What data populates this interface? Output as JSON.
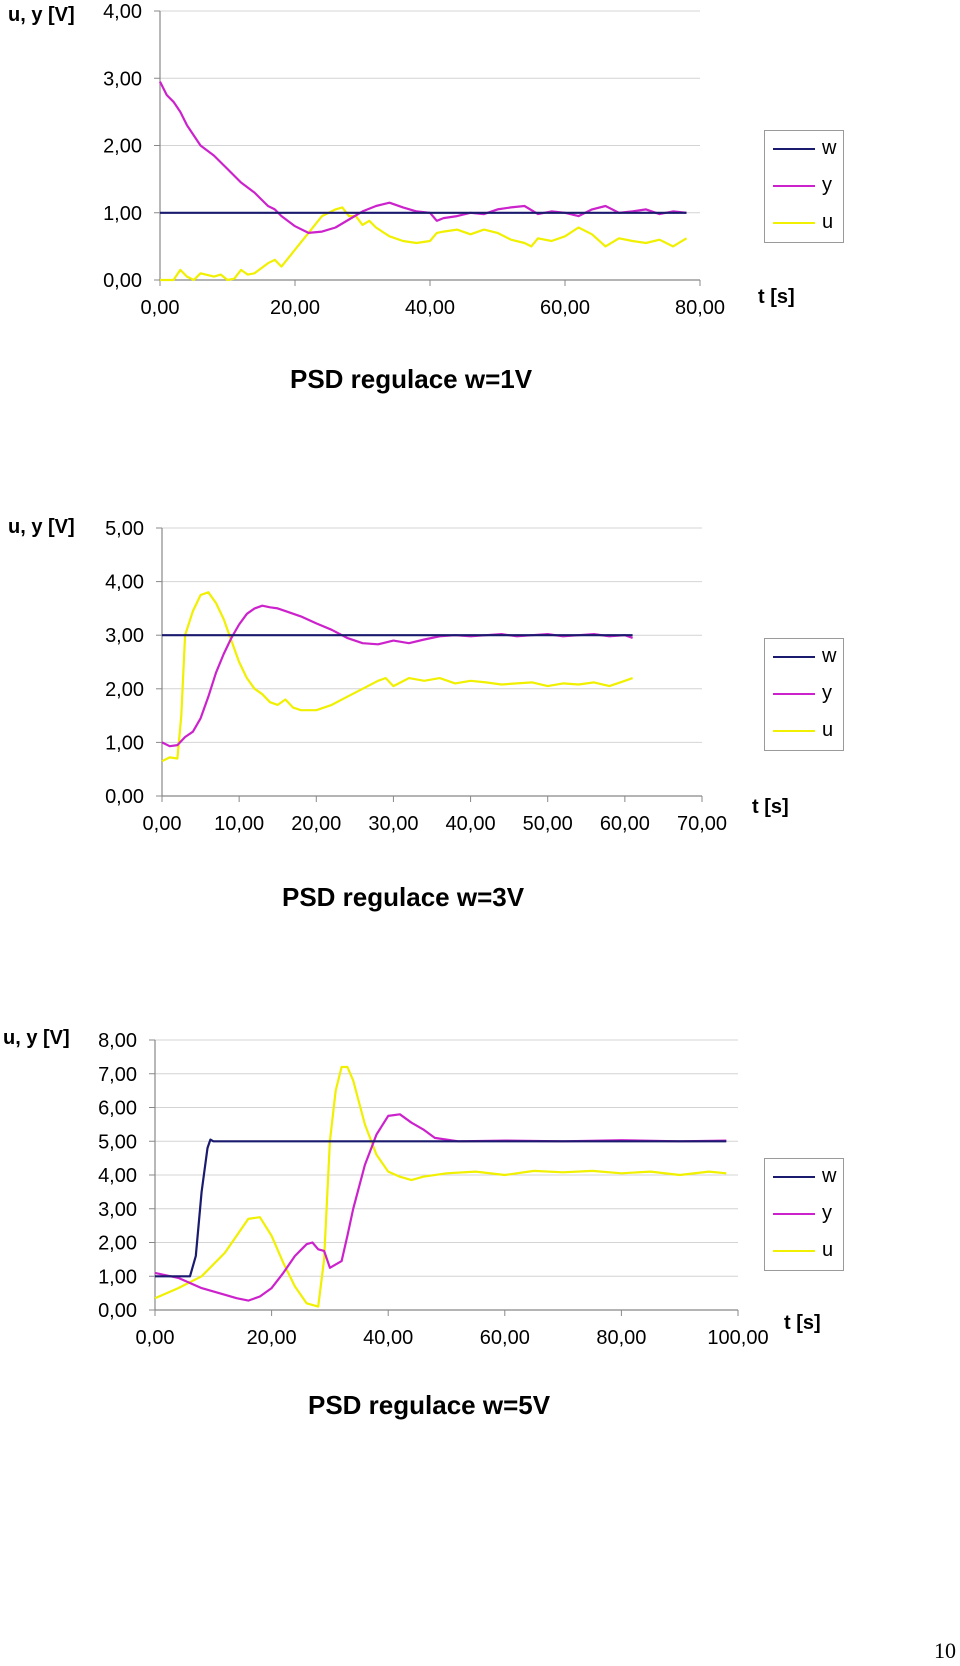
{
  "colors": {
    "w": "#1a1a6e",
    "y": "#cc22cc",
    "u": "#f0f000",
    "grid": "#d4d4d4",
    "axis": "#888888"
  },
  "page_number": "10",
  "chart_data": [
    {
      "type": "line",
      "title": "PSD regulace w=1V",
      "ylabel": "u, y [V]",
      "xlabel": "t [s]",
      "xlim": [
        0,
        80
      ],
      "ylim": [
        0,
        4
      ],
      "xticks": [
        0,
        20,
        40,
        60,
        80
      ],
      "xtick_labels": [
        "0,00",
        "20,00",
        "40,00",
        "60,00",
        "80,00"
      ],
      "yticks": [
        0,
        1,
        2,
        3,
        4
      ],
      "ytick_labels": [
        "0,00",
        "1,00",
        "2,00",
        "3,00",
        "4,00"
      ],
      "legend": [
        "w",
        "y",
        "u"
      ],
      "series": [
        {
          "name": "w",
          "x": [
            0,
            78
          ],
          "values": [
            1.0,
            1.0
          ]
        },
        {
          "name": "y",
          "x": [
            0,
            1,
            2,
            3,
            4,
            6,
            8,
            10,
            12,
            14,
            16,
            17,
            18,
            20,
            22,
            24,
            26,
            28,
            30,
            32,
            34,
            36,
            38,
            40,
            41,
            42,
            44,
            46,
            48,
            50,
            52,
            54,
            56,
            58,
            60,
            62,
            64,
            66,
            68,
            70,
            72,
            74,
            76,
            78
          ],
          "values": [
            2.95,
            2.75,
            2.65,
            2.5,
            2.3,
            2.0,
            1.85,
            1.65,
            1.45,
            1.3,
            1.1,
            1.05,
            0.95,
            0.8,
            0.7,
            0.72,
            0.78,
            0.9,
            1.02,
            1.1,
            1.15,
            1.08,
            1.02,
            1.0,
            0.88,
            0.92,
            0.95,
            1.0,
            0.98,
            1.05,
            1.08,
            1.1,
            0.98,
            1.02,
            1.0,
            0.95,
            1.05,
            1.1,
            1.0,
            1.02,
            1.05,
            0.98,
            1.02,
            1.0
          ]
        },
        {
          "name": "u",
          "x": [
            0,
            2,
            3,
            4,
            5,
            6,
            8,
            9,
            10,
            11,
            12,
            13,
            14,
            16,
            17,
            18,
            20,
            22,
            24,
            25,
            26,
            27,
            28,
            29,
            30,
            31,
            32,
            34,
            36,
            38,
            40,
            41,
            42,
            44,
            46,
            48,
            50,
            52,
            54,
            55,
            56,
            58,
            60,
            62,
            64,
            66,
            68,
            70,
            72,
            74,
            76,
            78
          ],
          "values": [
            0.0,
            0.0,
            0.15,
            0.05,
            0.0,
            0.1,
            0.05,
            0.08,
            0.0,
            0.02,
            0.15,
            0.08,
            0.1,
            0.25,
            0.3,
            0.2,
            0.45,
            0.7,
            0.95,
            1.0,
            1.05,
            1.08,
            0.95,
            0.95,
            0.82,
            0.88,
            0.78,
            0.65,
            0.58,
            0.55,
            0.58,
            0.7,
            0.72,
            0.75,
            0.68,
            0.75,
            0.7,
            0.6,
            0.55,
            0.5,
            0.62,
            0.58,
            0.65,
            0.78,
            0.68,
            0.5,
            0.62,
            0.58,
            0.55,
            0.6,
            0.5,
            0.62
          ]
        }
      ]
    },
    {
      "type": "line",
      "title": "PSD regulace w=3V",
      "ylabel": "u, y [V]",
      "xlabel": "t [s]",
      "xlim": [
        0,
        70
      ],
      "ylim": [
        0,
        5
      ],
      "xticks": [
        0,
        10,
        20,
        30,
        40,
        50,
        60,
        70
      ],
      "xtick_labels": [
        "0,00",
        "10,00",
        "20,00",
        "30,00",
        "40,00",
        "50,00",
        "60,00",
        "70,00"
      ],
      "yticks": [
        0,
        1,
        2,
        3,
        4,
        5
      ],
      "ytick_labels": [
        "0,00",
        "1,00",
        "2,00",
        "3,00",
        "4,00",
        "5,00"
      ],
      "legend": [
        "w",
        "y",
        "u"
      ],
      "series": [
        {
          "name": "w",
          "x": [
            0,
            61
          ],
          "values": [
            3.0,
            3.0
          ]
        },
        {
          "name": "y",
          "x": [
            0,
            1,
            2,
            3,
            4,
            5,
            6,
            7,
            8,
            9,
            10,
            11,
            12,
            13,
            14,
            15,
            16,
            18,
            20,
            22,
            24,
            26,
            28,
            30,
            32,
            34,
            36,
            38,
            40,
            42,
            44,
            46,
            48,
            50,
            52,
            54,
            56,
            58,
            60,
            61
          ],
          "values": [
            1.0,
            0.93,
            0.95,
            1.1,
            1.2,
            1.45,
            1.85,
            2.3,
            2.65,
            2.95,
            3.2,
            3.4,
            3.5,
            3.55,
            3.52,
            3.5,
            3.45,
            3.35,
            3.22,
            3.1,
            2.95,
            2.85,
            2.83,
            2.9,
            2.85,
            2.92,
            2.98,
            3.0,
            2.98,
            3.0,
            3.02,
            2.98,
            3.0,
            3.02,
            2.98,
            3.0,
            3.02,
            2.98,
            3.0,
            2.95
          ]
        },
        {
          "name": "u",
          "x": [
            0,
            1,
            2,
            2.5,
            3,
            4,
            5,
            6,
            7,
            8,
            9,
            10,
            11,
            12,
            13,
            14,
            15,
            16,
            17,
            18,
            19,
            20,
            22,
            24,
            26,
            28,
            29,
            30,
            32,
            34,
            36,
            38,
            40,
            42,
            44,
            46,
            48,
            50,
            52,
            54,
            56,
            58,
            60,
            61
          ],
          "values": [
            0.65,
            0.72,
            0.7,
            1.5,
            3.0,
            3.45,
            3.75,
            3.8,
            3.6,
            3.3,
            2.9,
            2.5,
            2.2,
            2.0,
            1.9,
            1.75,
            1.7,
            1.8,
            1.65,
            1.6,
            1.6,
            1.6,
            1.7,
            1.85,
            2.0,
            2.15,
            2.2,
            2.05,
            2.2,
            2.15,
            2.2,
            2.1,
            2.15,
            2.12,
            2.08,
            2.1,
            2.12,
            2.05,
            2.1,
            2.08,
            2.12,
            2.05,
            2.15,
            2.2
          ]
        }
      ]
    },
    {
      "type": "line",
      "title": "PSD regulace w=5V",
      "ylabel": "u, y [V]",
      "xlabel": "t [s]",
      "xlim": [
        0,
        100
      ],
      "ylim": [
        0,
        8
      ],
      "xticks": [
        0,
        20,
        40,
        60,
        80,
        100
      ],
      "xtick_labels": [
        "0,00",
        "20,00",
        "40,00",
        "60,00",
        "80,00",
        "100,00"
      ],
      "yticks": [
        0,
        1,
        2,
        3,
        4,
        5,
        6,
        7,
        8
      ],
      "ytick_labels": [
        "0,00",
        "1,00",
        "2,00",
        "3,00",
        "4,00",
        "5,00",
        "6,00",
        "7,00",
        "8,00"
      ],
      "legend": [
        "w",
        "y",
        "u"
      ],
      "series": [
        {
          "name": "w",
          "x": [
            0,
            6,
            7,
            8,
            9,
            9.5,
            10,
            98
          ],
          "values": [
            1.0,
            1.0,
            1.6,
            3.5,
            4.8,
            5.05,
            5.0,
            5.0
          ]
        },
        {
          "name": "y",
          "x": [
            0,
            4,
            8,
            10,
            12,
            14,
            16,
            18,
            20,
            22,
            24,
            26,
            27,
            28,
            29,
            30,
            32,
            33,
            34,
            36,
            38,
            40,
            42,
            44,
            46,
            48,
            50,
            52,
            60,
            70,
            80,
            90,
            98
          ],
          "values": [
            1.1,
            0.95,
            0.65,
            0.55,
            0.45,
            0.35,
            0.28,
            0.4,
            0.65,
            1.1,
            1.6,
            1.95,
            2.0,
            1.8,
            1.75,
            1.25,
            1.45,
            2.2,
            3.0,
            4.3,
            5.2,
            5.75,
            5.8,
            5.55,
            5.35,
            5.1,
            5.05,
            5.0,
            5.02,
            5.0,
            5.03,
            5.0,
            5.02
          ]
        },
        {
          "name": "u",
          "x": [
            0,
            4,
            8,
            12,
            16,
            18,
            20,
            22,
            24,
            26,
            28,
            29,
            30,
            31,
            32,
            33,
            34,
            36,
            38,
            40,
            42,
            44,
            46,
            50,
            55,
            60,
            65,
            70,
            75,
            80,
            85,
            90,
            95,
            98
          ],
          "values": [
            0.35,
            0.65,
            1.0,
            1.7,
            2.7,
            2.75,
            2.2,
            1.4,
            0.7,
            0.2,
            0.1,
            1.5,
            5.0,
            6.5,
            7.2,
            7.2,
            6.8,
            5.5,
            4.6,
            4.1,
            3.95,
            3.85,
            3.95,
            4.05,
            4.1,
            4.0,
            4.12,
            4.08,
            4.12,
            4.05,
            4.1,
            4.0,
            4.1,
            4.05
          ]
        }
      ]
    }
  ]
}
